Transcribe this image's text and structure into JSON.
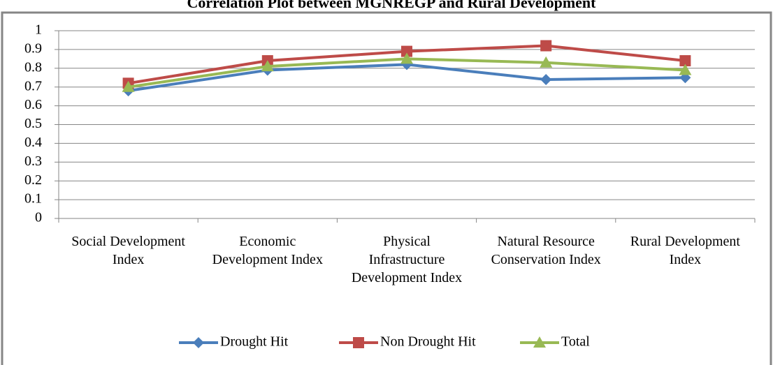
{
  "chart_data": {
    "type": "line",
    "title": "Correlation Plot between MGNREGP and Rural Development",
    "categories": [
      "Social Development Index",
      "Economic Development Index",
      "Physical Infrastructure Development Index",
      "Natural Resource Conservation Index",
      "Rural Development Index"
    ],
    "series": [
      {
        "name": "Drought Hit",
        "color": "#4a7ebb",
        "marker": "diamond",
        "values": [
          0.68,
          0.79,
          0.82,
          0.74,
          0.75
        ]
      },
      {
        "name": "Non Drought Hit",
        "color": "#be4b48",
        "marker": "square",
        "values": [
          0.72,
          0.84,
          0.89,
          0.92,
          0.84
        ]
      },
      {
        "name": "Total",
        "color": "#98b954",
        "marker": "triangle",
        "values": [
          0.7,
          0.81,
          0.85,
          0.83,
          0.79
        ]
      }
    ],
    "ylim": [
      0,
      1
    ],
    "yticks": [
      0,
      0.1,
      0.2,
      0.3,
      0.4,
      0.5,
      0.6,
      0.7,
      0.8,
      0.9,
      1
    ],
    "grid": true,
    "legend": "bottom"
  }
}
